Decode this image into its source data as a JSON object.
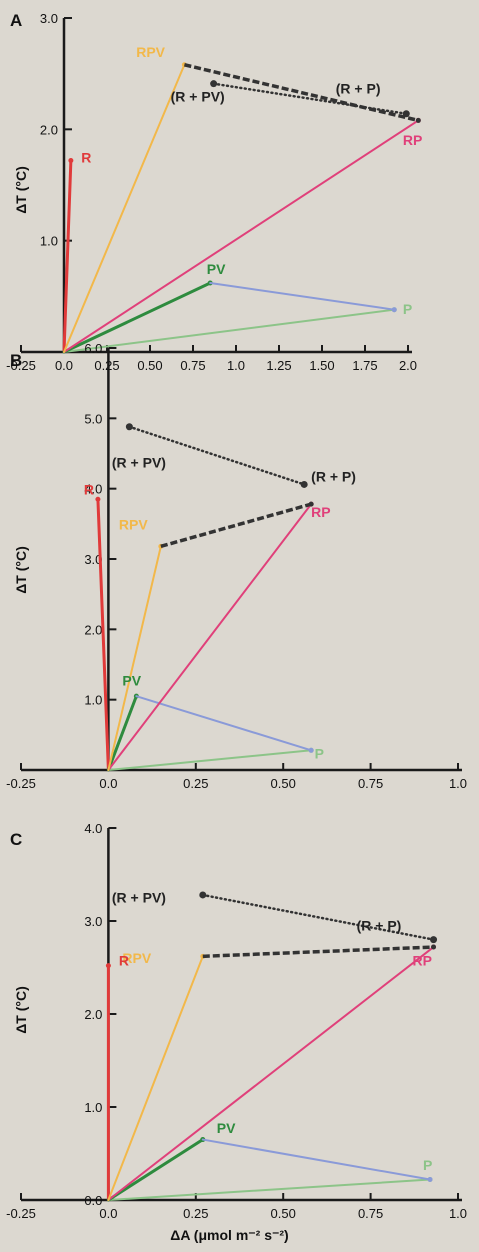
{
  "chart_data": [
    {
      "type": "line",
      "panel_label": "A",
      "ylabel": "ΔT (°C)",
      "xlabel": "",
      "xlim": [
        -0.25,
        2.0
      ],
      "ylim": [
        0,
        3.0
      ],
      "x_ticks": [
        -0.25,
        0.0,
        0.25,
        0.5,
        0.75,
        1.0,
        1.25,
        1.5,
        1.75,
        2.0
      ],
      "x_tick_labels": [
        "-0.25",
        "0.0",
        "0.25",
        "0.50",
        "0.75",
        "1.0",
        "1.25",
        "1.50",
        "1.75",
        "2.0"
      ],
      "y_ticks": [
        1.0,
        2.0,
        3.0
      ],
      "y_tick_labels": [
        "1.0",
        "2.0",
        "3.0"
      ],
      "series": [
        {
          "name": "R",
          "color": "#e03a3a",
          "style": "solid",
          "width": 3,
          "points": [
            [
              0,
              0
            ],
            [
              0.04,
              1.72
            ]
          ]
        },
        {
          "name": "P",
          "color": "#8cc488",
          "style": "solid",
          "width": 2,
          "points": [
            [
              0,
              0
            ],
            [
              1.92,
              0.38
            ]
          ]
        },
        {
          "name": "PV",
          "color": "#2e8b3e",
          "style": "solid",
          "width": 3,
          "points": [
            [
              0,
              0
            ],
            [
              0.85,
              0.62
            ]
          ]
        },
        {
          "name": "PV-P",
          "color": "#8a9ad8",
          "style": "solid",
          "width": 2,
          "points": [
            [
              0.85,
              0.62
            ],
            [
              1.92,
              0.38
            ]
          ]
        },
        {
          "name": "RP",
          "color": "#e0407a",
          "style": "solid",
          "width": 2,
          "points": [
            [
              0,
              0
            ],
            [
              2.06,
              2.08
            ]
          ]
        },
        {
          "name": "RPV",
          "color": "#f2b84a",
          "style": "solid",
          "width": 2,
          "points": [
            [
              0,
              0
            ],
            [
              0.7,
              2.58
            ]
          ]
        },
        {
          "name": "RPV-RP",
          "color": "#333333",
          "style": "dashed",
          "width": 3.5,
          "points": [
            [
              0.7,
              2.58
            ],
            [
              2.06,
              2.08
            ]
          ]
        },
        {
          "name": "R+PV-R+P",
          "color": "#333333",
          "style": "dotted",
          "width": 2.5,
          "points": [
            [
              0.87,
              2.41
            ],
            [
              1.99,
              2.14
            ]
          ]
        }
      ],
      "labels": [
        {
          "text": "RPV",
          "x": 0.42,
          "y": 2.65,
          "color": "#f2b84a"
        },
        {
          "text": "(R + PV)",
          "x": 0.62,
          "y": 2.25,
          "color": "#222222"
        },
        {
          "text": "(R + P)",
          "x": 1.58,
          "y": 2.32,
          "color": "#222222"
        },
        {
          "text": "RP",
          "x": 1.97,
          "y": 1.86,
          "color": "#e0407a"
        },
        {
          "text": "R",
          "x": 0.1,
          "y": 1.7,
          "color": "#e03a3a"
        },
        {
          "text": "PV",
          "x": 0.83,
          "y": 0.7,
          "color": "#2e8b3e"
        },
        {
          "text": "P",
          "x": 1.97,
          "y": 0.34,
          "color": "#8cc488"
        }
      ]
    },
    {
      "type": "line",
      "panel_label": "B",
      "ylabel": "ΔT (°C)",
      "xlabel": "",
      "xlim": [
        -0.25,
        1.0
      ],
      "ylim": [
        0,
        6.0
      ],
      "x_ticks": [
        -0.25,
        0.0,
        0.25,
        0.5,
        0.75,
        1.0
      ],
      "x_tick_labels": [
        "-0.25",
        "0.0",
        "0.25",
        "0.50",
        "0.75",
        "1.0"
      ],
      "y_ticks": [
        1.0,
        2.0,
        3.0,
        4.0,
        5.0,
        6.0
      ],
      "y_tick_labels": [
        "1.0",
        "2.0",
        "3.0",
        "4.0",
        "5.0",
        "6.0"
      ],
      "series": [
        {
          "name": "R",
          "color": "#e03a3a",
          "style": "solid",
          "width": 3,
          "points": [
            [
              0,
              0
            ],
            [
              -0.03,
              3.85
            ]
          ]
        },
        {
          "name": "P",
          "color": "#8cc488",
          "style": "solid",
          "width": 2,
          "points": [
            [
              0,
              0
            ],
            [
              0.58,
              0.28
            ]
          ]
        },
        {
          "name": "PV",
          "color": "#2e8b3e",
          "style": "solid",
          "width": 3,
          "points": [
            [
              0,
              0
            ],
            [
              0.08,
              1.05
            ]
          ]
        },
        {
          "name": "PV-P",
          "color": "#8a9ad8",
          "style": "solid",
          "width": 2,
          "points": [
            [
              0.08,
              1.05
            ],
            [
              0.58,
              0.28
            ]
          ]
        },
        {
          "name": "RP",
          "color": "#e0407a",
          "style": "solid",
          "width": 2,
          "points": [
            [
              0,
              0
            ],
            [
              0.58,
              3.78
            ]
          ]
        },
        {
          "name": "RPV",
          "color": "#f2b84a",
          "style": "solid",
          "width": 2,
          "points": [
            [
              0,
              0
            ],
            [
              0.15,
              3.18
            ]
          ]
        },
        {
          "name": "RPV-RP",
          "color": "#333333",
          "style": "dashed",
          "width": 3.5,
          "points": [
            [
              0.15,
              3.18
            ],
            [
              0.58,
              3.78
            ]
          ]
        },
        {
          "name": "R+PV-R+P",
          "color": "#333333",
          "style": "dotted",
          "width": 2.5,
          "points": [
            [
              0.06,
              4.88
            ],
            [
              0.56,
              4.06
            ]
          ]
        }
      ],
      "labels": [
        {
          "text": "(R + PV)",
          "x": 0.01,
          "y": 4.3,
          "color": "#222222"
        },
        {
          "text": "(R + P)",
          "x": 0.58,
          "y": 4.1,
          "color": "#222222"
        },
        {
          "text": "R",
          "x": -0.07,
          "y": 3.92,
          "color": "#e03a3a"
        },
        {
          "text": "RPV",
          "x": 0.03,
          "y": 3.42,
          "color": "#f2b84a"
        },
        {
          "text": "RP",
          "x": 0.58,
          "y": 3.6,
          "color": "#e0407a"
        },
        {
          "text": "PV",
          "x": 0.04,
          "y": 1.2,
          "color": "#2e8b3e"
        },
        {
          "text": "P",
          "x": 0.59,
          "y": 0.16,
          "color": "#8cc488"
        }
      ]
    },
    {
      "type": "line",
      "panel_label": "C",
      "ylabel": "ΔT (°C)",
      "xlabel": "ΔA (μmol m⁻² s⁻²)",
      "xlim": [
        -0.25,
        1.0
      ],
      "ylim": [
        0,
        4.0
      ],
      "x_ticks": [
        -0.25,
        0.0,
        0.25,
        0.5,
        0.75,
        1.0
      ],
      "x_tick_labels": [
        "-0.25",
        "0.0",
        "0.25",
        "0.50",
        "0.75",
        "1.0"
      ],
      "y_ticks": [
        0.0,
        1.0,
        2.0,
        3.0,
        4.0
      ],
      "y_tick_labels": [
        "0.0",
        "1.0",
        "2.0",
        "3.0",
        "4.0"
      ],
      "series": [
        {
          "name": "R",
          "color": "#e03a3a",
          "style": "solid",
          "width": 3,
          "points": [
            [
              0,
              0
            ],
            [
              0,
              2.52
            ]
          ]
        },
        {
          "name": "P",
          "color": "#8cc488",
          "style": "solid",
          "width": 2,
          "points": [
            [
              0,
              0
            ],
            [
              0.92,
              0.22
            ]
          ]
        },
        {
          "name": "PV",
          "color": "#2e8b3e",
          "style": "solid",
          "width": 3,
          "points": [
            [
              0,
              0
            ],
            [
              0.27,
              0.65
            ]
          ]
        },
        {
          "name": "PV-P",
          "color": "#8a9ad8",
          "style": "solid",
          "width": 2,
          "points": [
            [
              0.27,
              0.65
            ],
            [
              0.92,
              0.22
            ]
          ]
        },
        {
          "name": "RP",
          "color": "#e0407a",
          "style": "solid",
          "width": 2,
          "points": [
            [
              0,
              0
            ],
            [
              0.93,
              2.72
            ]
          ]
        },
        {
          "name": "RPV",
          "color": "#f2b84a",
          "style": "solid",
          "width": 2,
          "points": [
            [
              0,
              0
            ],
            [
              0.27,
              2.62
            ]
          ]
        },
        {
          "name": "RPV-RP",
          "color": "#333333",
          "style": "dashed",
          "width": 3.5,
          "points": [
            [
              0.27,
              2.62
            ],
            [
              0.93,
              2.72
            ]
          ]
        },
        {
          "name": "R+PV-R+P",
          "color": "#333333",
          "style": "dotted",
          "width": 2.5,
          "points": [
            [
              0.27,
              3.28
            ],
            [
              0.93,
              2.8
            ]
          ]
        }
      ],
      "labels": [
        {
          "text": "(R + PV)",
          "x": 0.01,
          "y": 3.2,
          "color": "#222222"
        },
        {
          "text": "(R + P)",
          "x": 0.71,
          "y": 2.9,
          "color": "#222222"
        },
        {
          "text": "RPV",
          "x": 0.04,
          "y": 2.55,
          "color": "#f2b84a"
        },
        {
          "text": "R",
          "x": 0.03,
          "y": 2.52,
          "color": "#e03a3a"
        },
        {
          "text": "RP",
          "x": 0.87,
          "y": 2.52,
          "color": "#e0407a"
        },
        {
          "text": "PV",
          "x": 0.31,
          "y": 0.72,
          "color": "#2e8b3e"
        },
        {
          "text": "P",
          "x": 0.9,
          "y": 0.32,
          "color": "#8cc488"
        }
      ]
    }
  ]
}
